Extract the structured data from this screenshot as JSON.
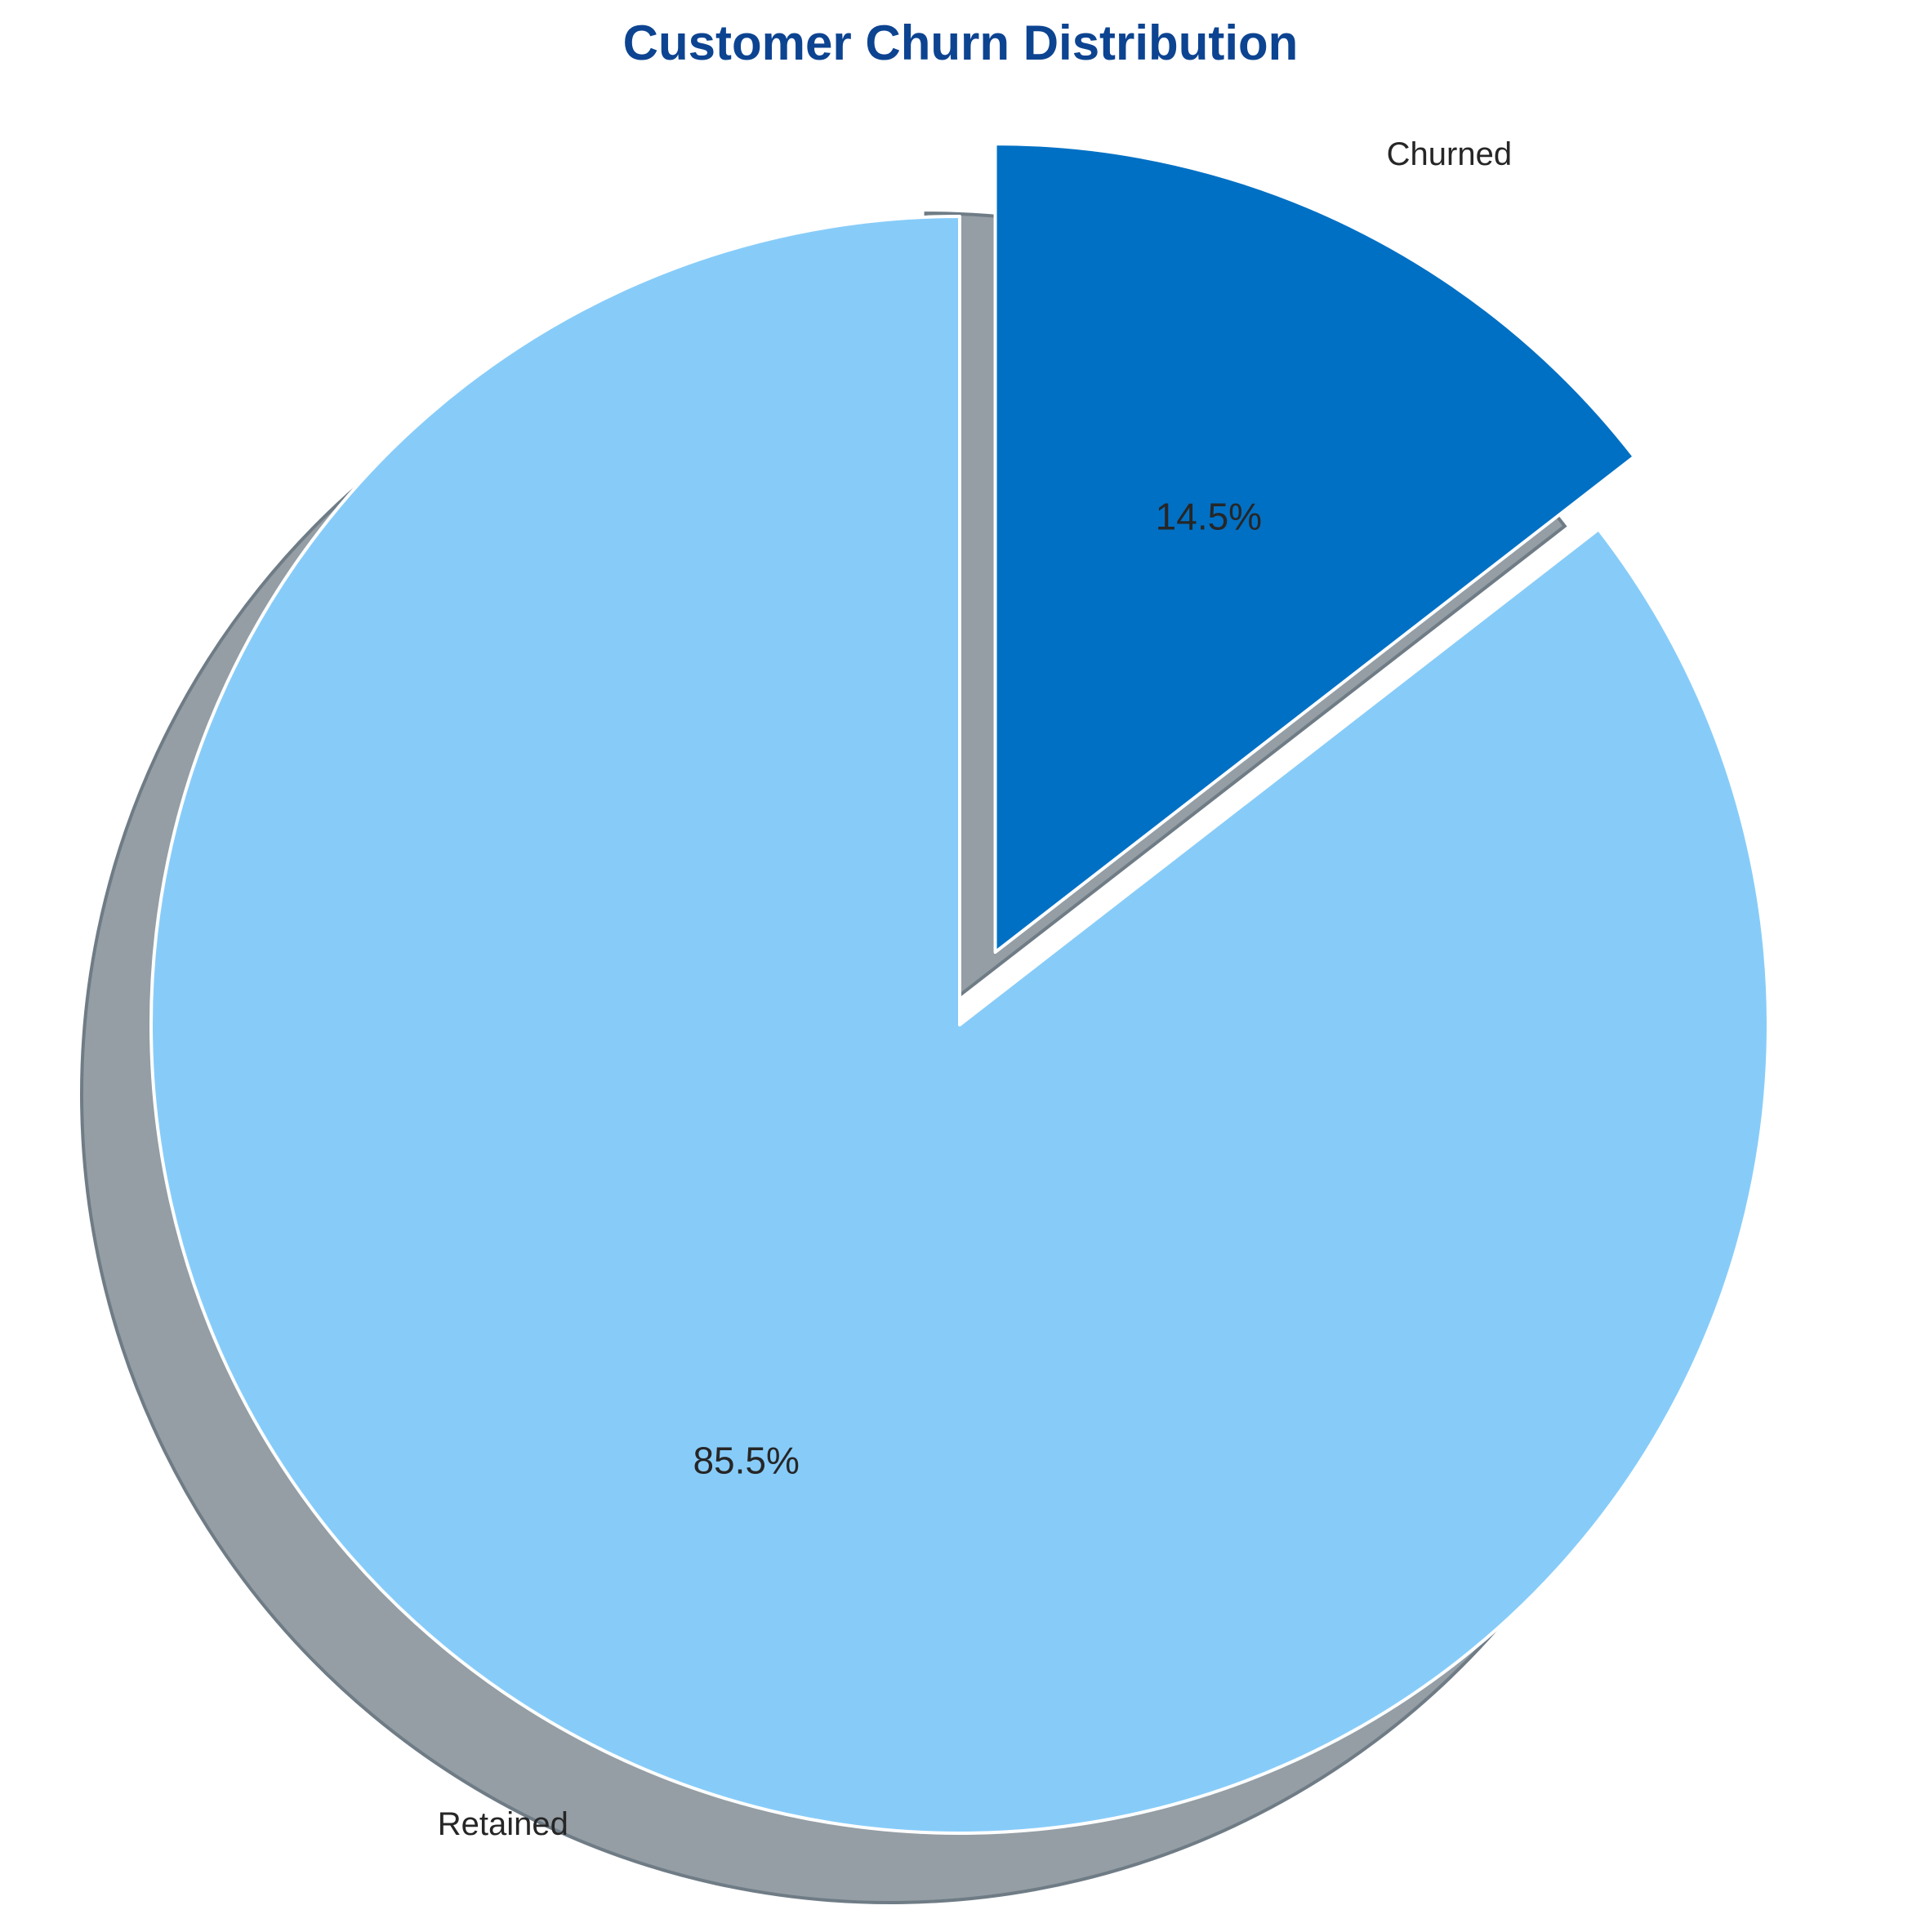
{
  "chart_data": {
    "type": "pie",
    "title": "Customer Churn Distribution",
    "slices": [
      {
        "label": "Churned",
        "value": 14.5,
        "pct_label": "14.5%",
        "color": "#0070c4",
        "exploded": true
      },
      {
        "label": "Retained",
        "value": 85.5,
        "pct_label": "85.5%",
        "color": "#87ccf9",
        "exploded": false
      }
    ],
    "start_angle": "top, counter-clockwise",
    "shadow": true,
    "shadow_color": "#949ea4",
    "edge_color": "#ffffff",
    "legend": "none"
  }
}
